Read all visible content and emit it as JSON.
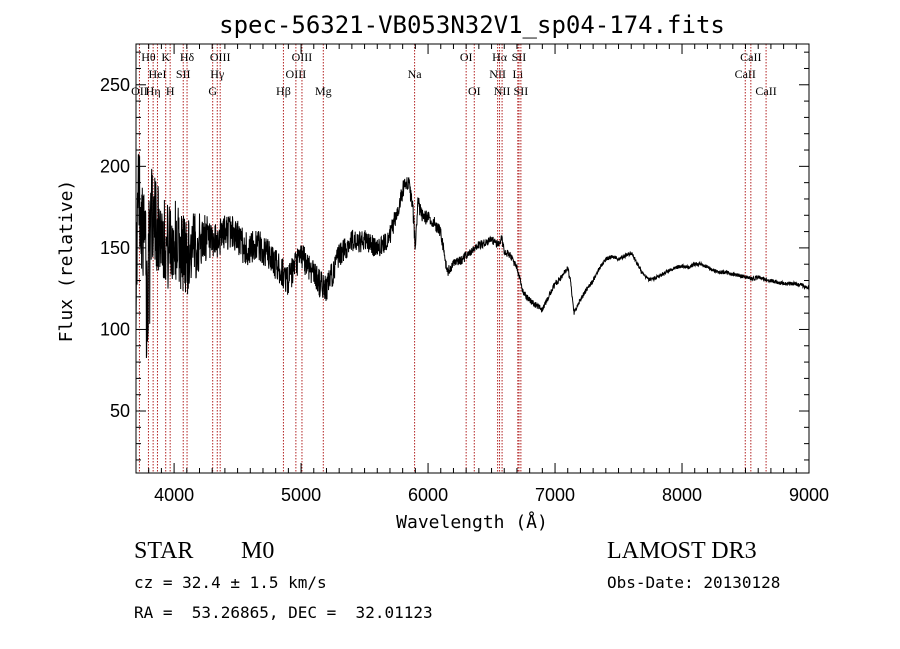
{
  "chart_data": {
    "type": "line",
    "title": "spec-56321-VB053N32V1_sp04-174.fits",
    "xlabel": "Wavelength (Å)",
    "ylabel": "Flux (relative)",
    "xlim": [
      3700,
      9000
    ],
    "ylim": [
      12,
      275
    ],
    "xticks": [
      4000,
      5000,
      6000,
      7000,
      8000,
      9000
    ],
    "yticks": [
      50,
      100,
      150,
      200,
      250
    ],
    "grid": false,
    "spectrum_color": "#000000",
    "line_color": "#b22222",
    "spectrum_anchors": [
      [
        3700,
        130
      ],
      [
        3720,
        190
      ],
      [
        3750,
        160
      ],
      [
        3780,
        150
      ],
      [
        3800,
        175
      ],
      [
        3850,
        165
      ],
      [
        3900,
        160
      ],
      [
        3950,
        150
      ],
      [
        4000,
        155
      ],
      [
        4050,
        150
      ],
      [
        4100,
        145
      ],
      [
        4150,
        150
      ],
      [
        4200,
        153
      ],
      [
        4250,
        157
      ],
      [
        4300,
        150
      ],
      [
        4350,
        155
      ],
      [
        4400,
        160
      ],
      [
        4450,
        160
      ],
      [
        4500,
        157
      ],
      [
        4550,
        150
      ],
      [
        4600,
        148
      ],
      [
        4650,
        153
      ],
      [
        4700,
        148
      ],
      [
        4750,
        145
      ],
      [
        4800,
        140
      ],
      [
        4850,
        135
      ],
      [
        4900,
        130
      ],
      [
        4950,
        138
      ],
      [
        5000,
        145
      ],
      [
        5050,
        140
      ],
      [
        5100,
        135
      ],
      [
        5150,
        128
      ],
      [
        5200,
        125
      ],
      [
        5250,
        135
      ],
      [
        5300,
        145
      ],
      [
        5350,
        150
      ],
      [
        5400,
        155
      ],
      [
        5450,
        152
      ],
      [
        5500,
        155
      ],
      [
        5550,
        152
      ],
      [
        5600,
        150
      ],
      [
        5650,
        152
      ],
      [
        5700,
        158
      ],
      [
        5750,
        170
      ],
      [
        5800,
        185
      ],
      [
        5820,
        192
      ],
      [
        5850,
        188
      ],
      [
        5880,
        175
      ],
      [
        5900,
        150
      ],
      [
        5920,
        178
      ],
      [
        5950,
        170
      ],
      [
        6000,
        168
      ],
      [
        6050,
        165
      ],
      [
        6100,
        160
      ],
      [
        6150,
        135
      ],
      [
        6200,
        140
      ],
      [
        6250,
        142
      ],
      [
        6300,
        145
      ],
      [
        6350,
        148
      ],
      [
        6400,
        152
      ],
      [
        6450,
        153
      ],
      [
        6500,
        155
      ],
      [
        6550,
        152
      ],
      [
        6580,
        156
      ],
      [
        6600,
        148
      ],
      [
        6650,
        145
      ],
      [
        6700,
        138
      ],
      [
        6750,
        122
      ],
      [
        6800,
        118
      ],
      [
        6850,
        115
      ],
      [
        6900,
        112
      ],
      [
        6950,
        120
      ],
      [
        7000,
        128
      ],
      [
        7050,
        132
      ],
      [
        7100,
        138
      ],
      [
        7120,
        130
      ],
      [
        7150,
        110
      ],
      [
        7200,
        118
      ],
      [
        7250,
        125
      ],
      [
        7300,
        130
      ],
      [
        7350,
        138
      ],
      [
        7400,
        143
      ],
      [
        7450,
        145
      ],
      [
        7500,
        143
      ],
      [
        7550,
        145
      ],
      [
        7600,
        147
      ],
      [
        7650,
        140
      ],
      [
        7700,
        133
      ],
      [
        7750,
        130
      ],
      [
        7800,
        132
      ],
      [
        7850,
        134
      ],
      [
        7900,
        136
      ],
      [
        7950,
        138
      ],
      [
        8000,
        139
      ],
      [
        8050,
        138
      ],
      [
        8100,
        140
      ],
      [
        8150,
        140
      ],
      [
        8200,
        138
      ],
      [
        8250,
        136
      ],
      [
        8300,
        135
      ],
      [
        8350,
        135
      ],
      [
        8400,
        134
      ],
      [
        8450,
        133
      ],
      [
        8500,
        132
      ],
      [
        8550,
        131
      ],
      [
        8600,
        132
      ],
      [
        8650,
        131
      ],
      [
        8700,
        130
      ],
      [
        8750,
        129
      ],
      [
        8800,
        128
      ],
      [
        8850,
        128
      ],
      [
        8900,
        128
      ],
      [
        8950,
        127
      ],
      [
        9000,
        125
      ]
    ],
    "noise_profile": [
      [
        3700,
        30
      ],
      [
        4100,
        25
      ],
      [
        4300,
        12
      ],
      [
        5250,
        8
      ],
      [
        5900,
        5
      ],
      [
        6200,
        3
      ],
      [
        6800,
        2
      ],
      [
        7500,
        1.2
      ],
      [
        9000,
        1.2
      ]
    ],
    "spectral_lines": [
      {
        "wavelength": 3727,
        "label": "OII",
        "row": 2
      },
      {
        "wavelength": 3798,
        "label": "Hθ",
        "row": 0
      },
      {
        "wavelength": 3835,
        "label": "Hη",
        "row": 2
      },
      {
        "wavelength": 3869,
        "label": "HeI",
        "row": 1
      },
      {
        "wavelength": 3934,
        "label": "K",
        "row": 0
      },
      {
        "wavelength": 3969,
        "label": "H",
        "row": 2
      },
      {
        "wavelength": 4072,
        "label": "SII",
        "row": 1
      },
      {
        "wavelength": 4102,
        "label": "Hδ",
        "row": 0
      },
      {
        "wavelength": 4304,
        "label": "G",
        "row": 2
      },
      {
        "wavelength": 4340,
        "label": "Hγ",
        "row": 1
      },
      {
        "wavelength": 4363,
        "label": "OIII",
        "row": 0
      },
      {
        "wavelength": 4861,
        "label": "Hβ",
        "row": 2
      },
      {
        "wavelength": 4959,
        "label": "OIII",
        "row": 1
      },
      {
        "wavelength": 5007,
        "label": "OIII",
        "row": 0
      },
      {
        "wavelength": 5175,
        "label": "Mg",
        "row": 2
      },
      {
        "wavelength": 5894,
        "label": "Na",
        "row": 1
      },
      {
        "wavelength": 6300,
        "label": "OI",
        "row": 0
      },
      {
        "wavelength": 6364,
        "label": "OI",
        "row": 2
      },
      {
        "wavelength": 6548,
        "label": "NII",
        "row": 1
      },
      {
        "wavelength": 6563,
        "label": "Hα",
        "row": 0
      },
      {
        "wavelength": 6583,
        "label": "NII",
        "row": 2
      },
      {
        "wavelength": 6707,
        "label": "Li",
        "row": 1
      },
      {
        "wavelength": 6716,
        "label": "SII",
        "row": 0
      },
      {
        "wavelength": 6731,
        "label": "SII",
        "row": 2
      },
      {
        "wavelength": 8498,
        "label": "CaII",
        "row": 1
      },
      {
        "wavelength": 8542,
        "label": "CaII",
        "row": 0
      },
      {
        "wavelength": 8662,
        "label": "CaII",
        "row": 2
      }
    ]
  },
  "info": {
    "class_label": "STAR",
    "subclass": "M0",
    "survey": "LAMOST DR3",
    "redshift_line": "cz = 32.4 ± 1.5 km/s",
    "obs_date": "Obs-Date: 20130128",
    "coords": "RA =  53.26865, DEC =  32.01123"
  }
}
